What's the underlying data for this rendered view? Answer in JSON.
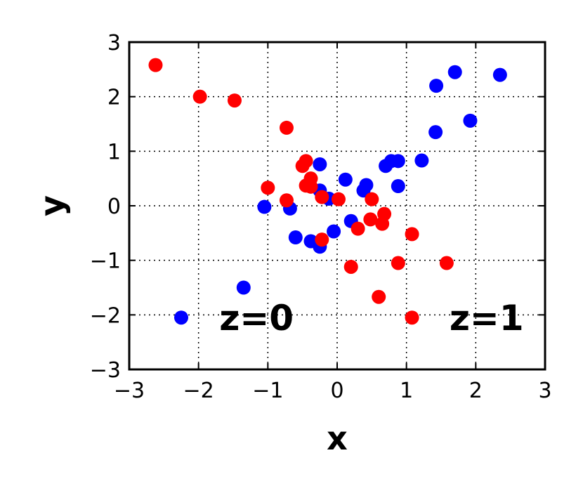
{
  "chart_data": {
    "type": "scatter",
    "xlabel": "x",
    "ylabel": "y",
    "xlim": [
      -3,
      3
    ],
    "ylim": [
      -3,
      3
    ],
    "grid": true,
    "x_ticks": [
      -3,
      -2,
      -1,
      0,
      1,
      2,
      3
    ],
    "y_ticks": [
      -3,
      -2,
      -1,
      0,
      1,
      2,
      3
    ],
    "x_tick_labels": [
      "−3",
      "−2",
      "−1",
      "0",
      "1",
      "2",
      "3"
    ],
    "y_tick_labels": [
      "−3",
      "−2",
      "−1",
      "0",
      "1",
      "2",
      "3"
    ],
    "series": [
      {
        "color": "#0000ff",
        "points": [
          [
            -2.25,
            -2.05
          ],
          [
            -1.35,
            -1.5
          ],
          [
            -1.05,
            -0.02
          ],
          [
            -0.68,
            -0.05
          ],
          [
            -0.6,
            -0.58
          ],
          [
            -0.38,
            -0.65
          ],
          [
            -0.25,
            -0.75
          ],
          [
            -0.25,
            0.76
          ],
          [
            -0.25,
            0.28
          ],
          [
            -0.12,
            0.13
          ],
          [
            -0.05,
            -0.47
          ],
          [
            0.12,
            0.48
          ],
          [
            0.2,
            -0.28
          ],
          [
            0.38,
            0.28
          ],
          [
            0.42,
            0.38
          ],
          [
            0.7,
            0.73
          ],
          [
            0.78,
            0.82
          ],
          [
            0.88,
            0.82
          ],
          [
            0.88,
            0.36
          ],
          [
            1.22,
            0.83
          ],
          [
            1.42,
            1.35
          ],
          [
            1.43,
            2.2
          ],
          [
            1.7,
            2.45
          ],
          [
            1.92,
            1.56
          ],
          [
            2.35,
            2.4
          ]
        ]
      },
      {
        "color": "#ff0000",
        "points": [
          [
            -2.62,
            2.58
          ],
          [
            -1.98,
            2.0
          ],
          [
            -1.48,
            1.93
          ],
          [
            -1.0,
            0.33
          ],
          [
            -0.73,
            1.43
          ],
          [
            -0.73,
            0.1
          ],
          [
            -0.5,
            0.73
          ],
          [
            -0.45,
            0.82
          ],
          [
            -0.45,
            0.37
          ],
          [
            -0.38,
            0.5
          ],
          [
            -0.38,
            0.35
          ],
          [
            -0.22,
            0.16
          ],
          [
            -0.22,
            -0.62
          ],
          [
            0.02,
            0.12
          ],
          [
            0.2,
            -1.12
          ],
          [
            0.3,
            -0.42
          ],
          [
            0.48,
            -0.25
          ],
          [
            0.5,
            0.12
          ],
          [
            0.6,
            -1.67
          ],
          [
            0.65,
            -0.33
          ],
          [
            0.68,
            -0.15
          ],
          [
            0.88,
            -1.05
          ],
          [
            1.08,
            -0.52
          ],
          [
            1.08,
            -2.05
          ],
          [
            1.58,
            -1.05
          ]
        ]
      }
    ],
    "annotations": [
      {
        "text": "z=0",
        "x": -1.7,
        "y": -2.05
      },
      {
        "text": "z=1",
        "x": 1.62,
        "y": -2.05
      }
    ]
  }
}
